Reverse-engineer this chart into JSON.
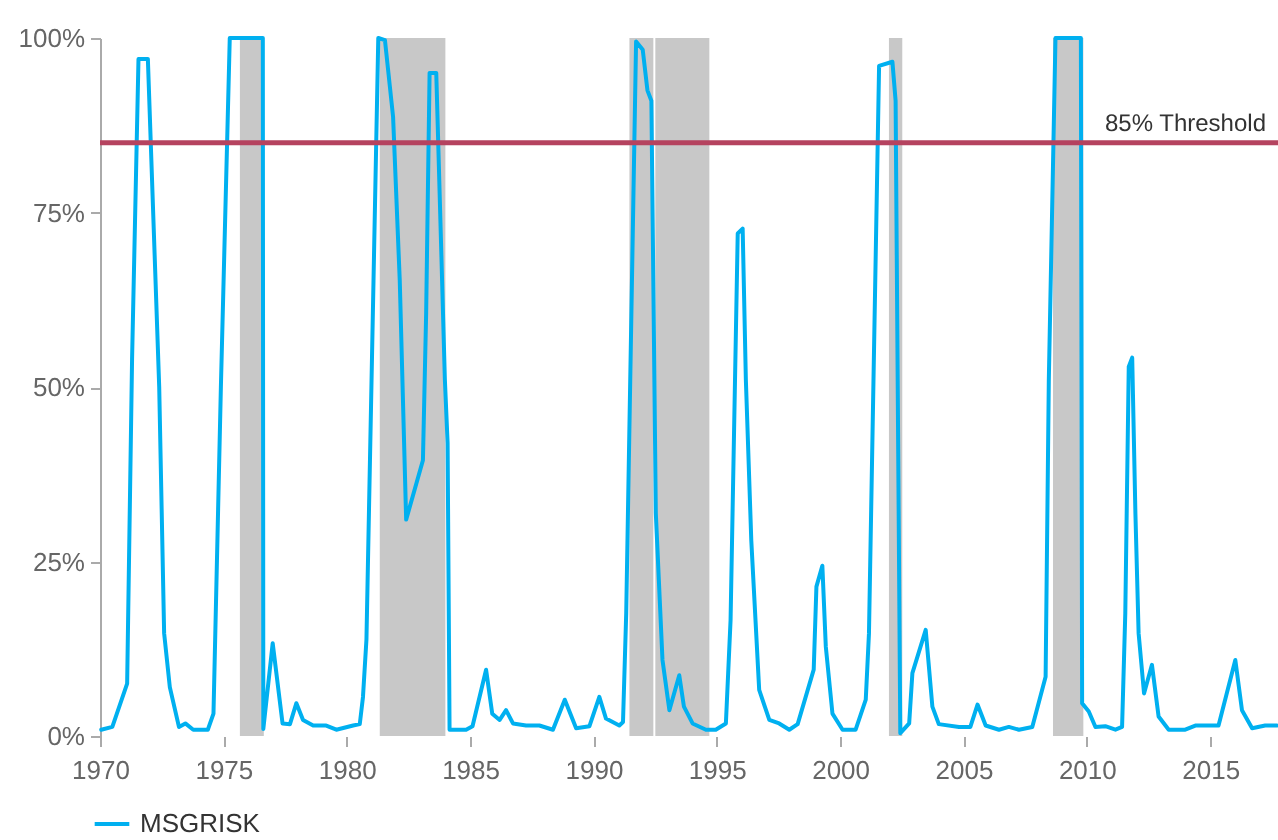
{
  "chart_data": {
    "type": "line",
    "x": [
      1970.05,
      1970.5,
      1971.1,
      1971.3,
      1971.56,
      1971.94,
      1972.4,
      1972.6,
      1972.83,
      1973.2,
      1973.46,
      1973.78,
      1974.37,
      1974.6,
      1974.9,
      1975.26,
      1976.6,
      1976.62,
      1977.0,
      1977.4,
      1977.7,
      1977.96,
      1978.23,
      1978.64,
      1979.17,
      1979.58,
      1980.26,
      1980.53,
      1980.66,
      1980.8,
      1981.28,
      1981.55,
      1981.88,
      1982.15,
      1982.41,
      1983.09,
      1983.22,
      1983.36,
      1983.63,
      1983.98,
      1984.09,
      1984.17,
      1984.84,
      1985.1,
      1985.65,
      1985.9,
      1986.2,
      1986.46,
      1986.74,
      1987.27,
      1987.81,
      1988.36,
      1988.84,
      1989.3,
      1989.84,
      1990.24,
      1990.51,
      1991.05,
      1991.2,
      1991.33,
      1991.73,
      1992.0,
      1992.19,
      1992.35,
      1992.53,
      1992.8,
      1993.08,
      1993.48,
      1993.67,
      1994.02,
      1994.56,
      1994.96,
      1995.37,
      1995.56,
      1995.85,
      1996.05,
      1996.18,
      1996.4,
      1996.72,
      1997.13,
      1997.53,
      1997.94,
      1998.28,
      1998.93,
      1999.04,
      1999.28,
      1999.42,
      1999.69,
      2000.1,
      2000.63,
      2001.04,
      2001.17,
      2001.58,
      2002.12,
      2002.25,
      2002.44,
      2002.8,
      2002.93,
      2003.47,
      2003.74,
      2004.0,
      2004.82,
      2005.28,
      2005.57,
      2005.9,
      2006.44,
      2006.84,
      2007.25,
      2007.79,
      2008.33,
      2008.46,
      2008.73,
      2009.76,
      2009.81,
      2010.08,
      2010.35,
      2010.75,
      2011.16,
      2011.43,
      2011.56,
      2011.7,
      2011.84,
      2011.97,
      2012.1,
      2012.32,
      2012.64,
      2012.91,
      2013.32,
      2013.99,
      2014.4,
      2015.34,
      2016.02,
      2016.29,
      2016.7,
      2017.23,
      2017.7
    ],
    "series": [
      {
        "name": "MSGRISK",
        "color": "#00b0f0",
        "values": [
          0.9,
          1.3,
          7.5,
          54,
          97,
          97,
          50,
          14.7,
          7,
          1.3,
          1.8,
          0.9,
          0.9,
          3.2,
          50,
          100,
          100,
          1,
          13.3,
          1.8,
          1.7,
          4.7,
          2.3,
          1.5,
          1.5,
          0.9,
          1.5,
          1.7,
          5.6,
          13.8,
          100,
          99.7,
          88.7,
          65.3,
          31,
          39.5,
          60.5,
          95,
          95,
          51,
          42,
          0.9,
          0.9,
          1.4,
          9.5,
          3.2,
          2.3,
          3.7,
          1.8,
          1.5,
          1.5,
          0.9,
          5.2,
          1.1,
          1.4,
          5.6,
          2.5,
          1.5,
          2,
          17.6,
          99.5,
          98.3,
          92.5,
          91,
          31.9,
          10.9,
          3.7,
          8.7,
          4.2,
          1.8,
          0.9,
          0.9,
          1.8,
          16.6,
          72,
          72.7,
          51,
          28,
          6.6,
          2.3,
          1.8,
          0.9,
          1.7,
          9.5,
          21.4,
          24.4,
          12.8,
          3.2,
          0.9,
          0.9,
          5.2,
          14.7,
          96,
          96.6,
          91,
          0.4,
          1.8,
          9,
          15.2,
          4.2,
          1.7,
          1.3,
          1.3,
          4.5,
          1.5,
          0.9,
          1.3,
          0.9,
          1.3,
          8.5,
          51,
          100,
          100,
          4.7,
          3.5,
          1.3,
          1.4,
          0.9,
          1.3,
          17.6,
          52.9,
          54.2,
          31.9,
          14.7,
          6.1,
          10.2,
          2.8,
          0.9,
          0.9,
          1.5,
          1.5,
          10.9,
          3.7,
          1.1,
          1.5,
          1.5
        ]
      }
    ],
    "xlim": [
      1970,
      2017.75
    ],
    "xticks": [
      1970,
      1975,
      1980,
      1985,
      1990,
      1995,
      2000,
      2005,
      2010,
      2015
    ],
    "ylim": [
      0,
      100
    ],
    "yticks": [
      {
        "value": 0,
        "label": "0%"
      },
      {
        "value": 25,
        "label": "25%"
      },
      {
        "value": 50,
        "label": "50%"
      },
      {
        "value": 75,
        "label": "75%"
      },
      {
        "value": 100,
        "label": "100%"
      }
    ],
    "ref_lines": [
      {
        "axis": "y",
        "value": 85,
        "label": "85% Threshold",
        "color": "#b5435f"
      }
    ],
    "bands": [
      {
        "axis": "x",
        "from": 1975.67,
        "to": 1976.64,
        "color": "#c8c8c8"
      },
      {
        "axis": "x",
        "from": 1981.34,
        "to": 1984.0,
        "color": "#c8c8c8"
      },
      {
        "axis": "x",
        "from": 1991.46,
        "to": 1992.43,
        "color": "#c8c8c8"
      },
      {
        "axis": "x",
        "from": 1992.51,
        "to": 1994.7,
        "color": "#c8c8c8"
      },
      {
        "axis": "x",
        "from": 2001.98,
        "to": 2002.52,
        "color": "#c8c8c8"
      },
      {
        "axis": "x",
        "from": 2008.63,
        "to": 2009.86,
        "color": "#c8c8c8"
      }
    ],
    "legend": "bottom left",
    "grid": false,
    "marker": "none",
    "line_style": "solid"
  }
}
